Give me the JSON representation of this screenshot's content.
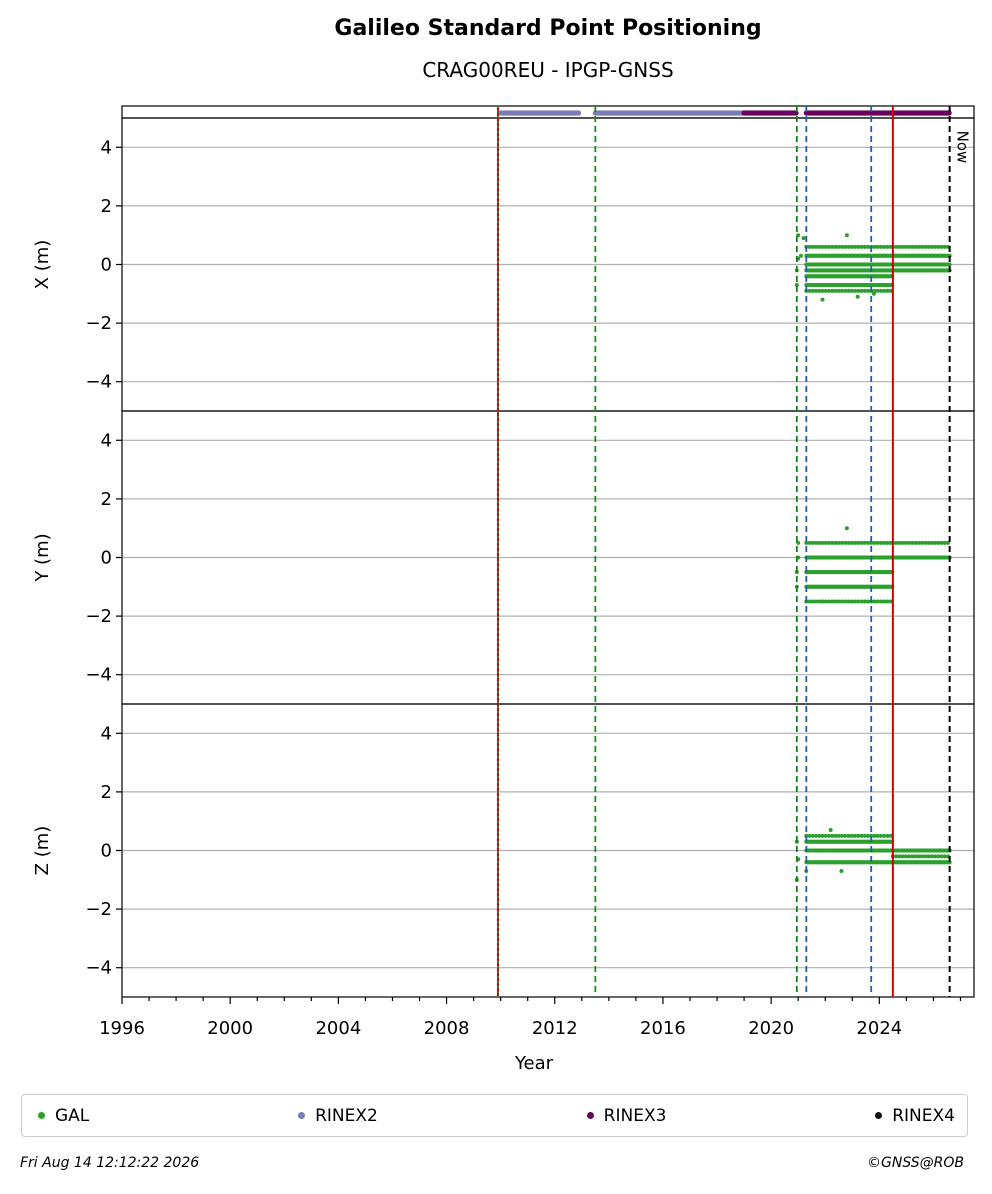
{
  "header": {
    "title": "Galileo Standard Point Positioning",
    "subtitle": "CRAG00REU - IPGP-GNSS"
  },
  "footer": {
    "timestamp": "Fri Aug 14 12:12:22 2026",
    "copyright": "©GNSS@ROB"
  },
  "legend": [
    {
      "label": "GAL",
      "color": "#2ca02c"
    },
    {
      "label": "RINEX2",
      "color": "#7b7bb8"
    },
    {
      "label": "RINEX3",
      "color": "#6a0060"
    },
    {
      "label": "RINEX4",
      "color": "#111111"
    }
  ],
  "chart_data": {
    "type": "scatter",
    "title": "Galileo Standard Point Positioning",
    "subtitle": "CRAG00REU - IPGP-GNSS",
    "xlabel": "Year",
    "xlim": [
      1996,
      2027.5
    ],
    "xticks": [
      "1996",
      "2000",
      "2004",
      "2008",
      "2012",
      "2016",
      "2020",
      "2024"
    ],
    "grid": true,
    "legend_position": "bottom",
    "now_label": "Now",
    "now_year": 2026.6,
    "vertical_lines": [
      {
        "year": 2009.9,
        "color": "#cc0000",
        "style": "solid"
      },
      {
        "year": 2009.9,
        "color": "#2e8b2e",
        "style": "dotted"
      },
      {
        "year": 2013.5,
        "color": "#1a8a1a",
        "style": "dashed"
      },
      {
        "year": 2020.95,
        "color": "#1a7a1a",
        "style": "dashed"
      },
      {
        "year": 2021.3,
        "color": "#1f5fb0",
        "style": "dashed"
      },
      {
        "year": 2023.7,
        "color": "#1f5fb0",
        "style": "dashed"
      },
      {
        "year": 2024.5,
        "color": "#cc0000",
        "style": "solid"
      }
    ],
    "rinex_bars": [
      {
        "name": "RINEX2",
        "color": "#7b7bb8",
        "ranges": [
          [
            2010.0,
            2012.9
          ],
          [
            2013.5,
            2019.0
          ]
        ]
      },
      {
        "name": "RINEX3",
        "color": "#6a0060",
        "ranges": [
          [
            2019.0,
            2020.95
          ],
          [
            2021.3,
            2026.6
          ]
        ]
      }
    ],
    "panels": [
      {
        "ylabel": "X (m)",
        "ylim": [
          -5,
          5
        ],
        "yticks": [
          "4",
          "2",
          "0",
          "−2",
          "−4"
        ],
        "series": [
          {
            "name": "GAL",
            "color": "#2ca02c",
            "bands": [
              {
                "x0": 2021.3,
                "x1": 2024.5,
                "y": [
                  -0.7,
                  -0.4,
                  -0.2,
                  0.0,
                  0.3
                ]
              },
              {
                "x0": 2024.5,
                "x1": 2026.6,
                "y": [
                  -0.2,
                  0.0,
                  0.3
                ]
              }
            ],
            "sparse": [
              {
                "x0": 2021.3,
                "x1": 2024.5,
                "y": [
                  -0.9,
                  0.6
                ]
              },
              {
                "x0": 2024.5,
                "x1": 2026.6,
                "y": [
                  0.6
                ]
              }
            ],
            "outliers": [
              [
                2020.95,
                -0.7
              ],
              [
                2020.95,
                -0.2
              ],
              [
                2021.0,
                0.2
              ],
              [
                2021.0,
                1.0
              ],
              [
                2021.2,
                0.9
              ],
              [
                2021.1,
                0.3
              ],
              [
                2021.9,
                -1.2
              ],
              [
                2022.8,
                1.0
              ],
              [
                2023.2,
                -1.1
              ],
              [
                2023.8,
                -1.0
              ]
            ]
          }
        ]
      },
      {
        "ylabel": "Y (m)",
        "ylim": [
          -5,
          5
        ],
        "yticks": [
          "4",
          "2",
          "0",
          "−2",
          "−4"
        ],
        "series": [
          {
            "name": "GAL",
            "color": "#2ca02c",
            "bands": [
              {
                "x0": 2021.3,
                "x1": 2024.5,
                "y": [
                  -1.0,
                  -0.5,
                  0.0
                ]
              },
              {
                "x0": 2024.5,
                "x1": 2026.6,
                "y": [
                  0.0
                ]
              }
            ],
            "sparse": [
              {
                "x0": 2021.3,
                "x1": 2024.5,
                "y": [
                  -1.5,
                  0.5
                ]
              },
              {
                "x0": 2024.5,
                "x1": 2026.6,
                "y": [
                  0.5
                ]
              }
            ],
            "outliers": [
              [
                2020.95,
                -1.0
              ],
              [
                2020.95,
                -0.5
              ],
              [
                2021.0,
                0.5
              ],
              [
                2021.0,
                0.0
              ],
              [
                2022.8,
                1.0
              ],
              [
                2021.9,
                -1.5
              ]
            ]
          }
        ]
      },
      {
        "ylabel": "Z (m)",
        "ylim": [
          -5,
          5
        ],
        "yticks": [
          "4",
          "2",
          "0",
          "−2",
          "−4"
        ],
        "series": [
          {
            "name": "GAL",
            "color": "#2ca02c",
            "bands": [
              {
                "x0": 2021.3,
                "x1": 2024.5,
                "y": [
                  -0.4,
                  0.0,
                  0.3
                ]
              },
              {
                "x0": 2024.5,
                "x1": 2026.6,
                "y": [
                  -0.4,
                  0.0
                ]
              }
            ],
            "sparse": [
              {
                "x0": 2021.3,
                "x1": 2024.5,
                "y": [
                  0.5
                ]
              },
              {
                "x0": 2024.5,
                "x1": 2026.6,
                "y": [
                  -0.2
                ]
              }
            ],
            "outliers": [
              [
                2020.95,
                -1.0
              ],
              [
                2020.95,
                0.3
              ],
              [
                2021.0,
                -0.3
              ],
              [
                2021.3,
                -0.7
              ],
              [
                2022.2,
                0.7
              ],
              [
                2022.6,
                -0.7
              ]
            ]
          }
        ]
      }
    ]
  }
}
